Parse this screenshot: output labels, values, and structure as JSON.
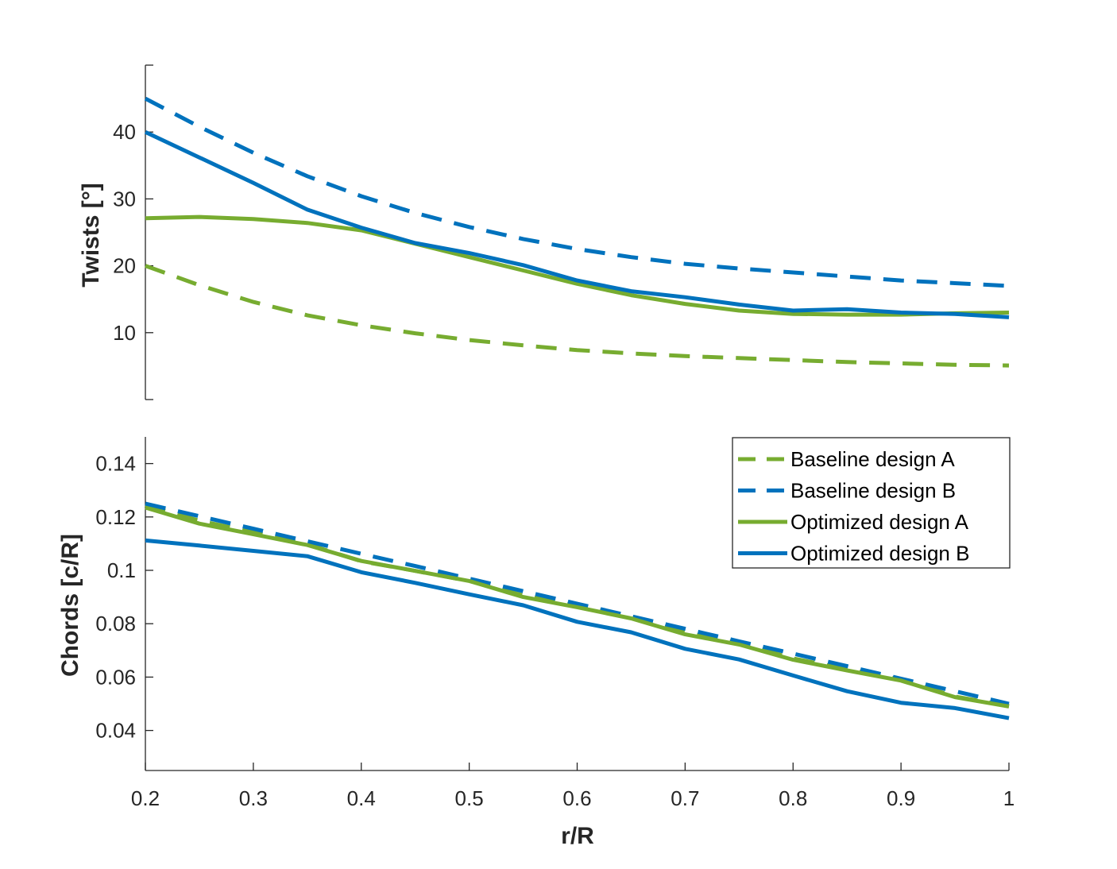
{
  "colors": {
    "design_a": "#77ac30",
    "design_b": "#0072bd",
    "axis": "#262626"
  },
  "chart_data": [
    {
      "type": "line",
      "ylabel": "Twists [°]",
      "xlabel": "",
      "xlim": [
        0.2,
        1
      ],
      "ylim": [
        0,
        50
      ],
      "yticks": [
        10,
        20,
        30,
        40
      ],
      "x": [
        0.2,
        0.25,
        0.3,
        0.35,
        0.4,
        0.45,
        0.5,
        0.55,
        0.6,
        0.65,
        0.7,
        0.75,
        0.8,
        0.85,
        0.9,
        0.95,
        1.0
      ],
      "series": [
        {
          "name": "Baseline design A",
          "style": "dashed",
          "color": "design_a",
          "values": [
            20.0,
            17.1,
            14.6,
            12.6,
            11.1,
            9.9,
            8.9,
            8.1,
            7.4,
            6.9,
            6.5,
            6.2,
            5.9,
            5.6,
            5.4,
            5.2,
            5.1
          ]
        },
        {
          "name": "Baseline design B",
          "style": "dashed",
          "color": "design_b",
          "values": [
            45.0,
            40.8,
            36.9,
            33.4,
            30.4,
            27.9,
            25.8,
            24.0,
            22.5,
            21.3,
            20.3,
            19.6,
            19.0,
            18.4,
            17.8,
            17.4,
            17.0
          ]
        },
        {
          "name": "Optimized design A",
          "style": "solid",
          "color": "design_a",
          "values": [
            27.1,
            27.3,
            27.0,
            26.4,
            25.3,
            23.3,
            21.3,
            19.3,
            17.3,
            15.6,
            14.3,
            13.3,
            12.8,
            12.7,
            12.7,
            12.9,
            13.0
          ]
        },
        {
          "name": "Optimized design B",
          "style": "solid",
          "color": "design_b",
          "values": [
            40.0,
            36.2,
            32.4,
            28.4,
            25.7,
            23.4,
            21.9,
            20.1,
            17.8,
            16.2,
            15.3,
            14.2,
            13.3,
            13.5,
            13.0,
            12.8,
            12.3
          ]
        }
      ]
    },
    {
      "type": "line",
      "ylabel": "Chords [c/R]",
      "xlabel": "r/R",
      "xlim": [
        0.2,
        1
      ],
      "ylim": [
        0.025,
        0.15
      ],
      "yticks": [
        0.04,
        0.06,
        0.08,
        0.1,
        0.12,
        0.14
      ],
      "xticks": [
        0.2,
        0.3,
        0.4,
        0.5,
        0.6,
        0.7,
        0.8,
        0.9,
        1
      ],
      "legend_position": "top-right",
      "x": [
        0.2,
        0.25,
        0.3,
        0.35,
        0.4,
        0.45,
        0.5,
        0.55,
        0.6,
        0.65,
        0.7,
        0.75,
        0.8,
        0.85,
        0.9,
        0.95,
        1.0
      ],
      "series": [
        {
          "name": "Baseline design A",
          "style": "dashed",
          "color": "design_a",
          "values": [
            0.1245,
            0.1186,
            0.1143,
            0.1098,
            0.1034,
            0.0998,
            0.096,
            0.0906,
            0.0868,
            0.0827,
            0.0767,
            0.0727,
            0.067,
            0.063,
            0.0591,
            0.0527,
            0.0492
          ]
        },
        {
          "name": "Baseline design B",
          "style": "dashed",
          "color": "design_b",
          "values": [
            0.125,
            0.1203,
            0.1156,
            0.1109,
            0.1062,
            0.1016,
            0.0969,
            0.0922,
            0.0875,
            0.0828,
            0.0781,
            0.0734,
            0.0688,
            0.0641,
            0.0594,
            0.0547,
            0.05
          ]
        },
        {
          "name": "Optimized design A",
          "style": "solid",
          "color": "design_a",
          "values": [
            0.1235,
            0.1175,
            0.1135,
            0.1095,
            0.1035,
            0.0998,
            0.096,
            0.09,
            0.0862,
            0.082,
            0.076,
            0.0722,
            0.0665,
            0.0625,
            0.0587,
            0.0525,
            0.049
          ]
        },
        {
          "name": "Optimized design B",
          "style": "solid",
          "color": "design_b",
          "values": [
            0.1112,
            0.1093,
            0.1073,
            0.1053,
            0.0993,
            0.0953,
            0.091,
            0.0869,
            0.0807,
            0.0768,
            0.0706,
            0.0666,
            0.0606,
            0.0547,
            0.0504,
            0.0484,
            0.0446
          ]
        }
      ]
    }
  ]
}
